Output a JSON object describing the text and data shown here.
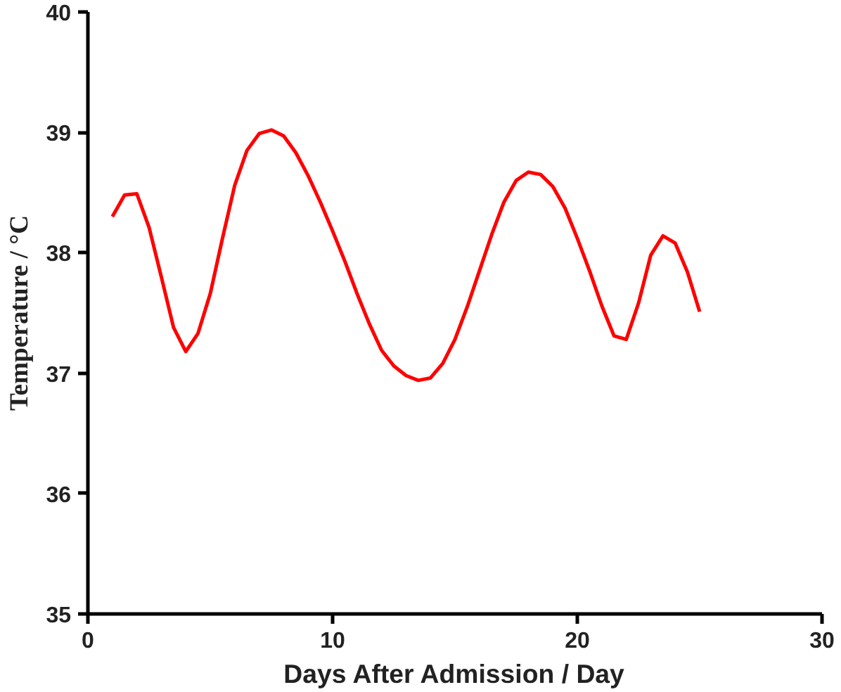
{
  "chart_data": {
    "type": "line",
    "xlabel": "Days After Admission / Day",
    "ylabel": "Temperature / °C",
    "x": [
      1,
      1.5,
      2,
      2.5,
      3,
      3.5,
      4,
      4.5,
      5,
      5.5,
      6,
      6.5,
      7,
      7.5,
      8,
      8.5,
      9,
      9.5,
      10,
      10.5,
      11,
      11.5,
      12,
      12.5,
      13,
      13.5,
      14,
      14.5,
      15,
      15.5,
      16,
      16.5,
      17,
      17.5,
      18,
      18.5,
      19,
      19.5,
      20,
      20.5,
      21,
      21.5,
      22,
      22.5,
      23,
      23.5,
      24,
      24.5,
      25
    ],
    "series": [
      {
        "color": "#ff0000",
        "values": [
          38.3,
          38.48,
          38.49,
          38.21,
          37.8,
          37.38,
          37.18,
          37.33,
          37.66,
          38.12,
          38.56,
          38.85,
          38.99,
          39.02,
          38.97,
          38.83,
          38.64,
          38.42,
          38.18,
          37.93,
          37.66,
          37.41,
          37.19,
          37.06,
          36.98,
          36.94,
          36.96,
          37.08,
          37.28,
          37.55,
          37.85,
          38.15,
          38.42,
          38.6,
          38.67,
          38.65,
          38.55,
          38.37,
          38.12,
          37.85,
          37.56,
          37.31,
          37.28,
          37.58,
          37.98,
          38.14,
          38.08,
          37.84,
          37.51
        ]
      }
    ],
    "xlim": [
      0,
      30
    ],
    "xticks": [
      0,
      10,
      20,
      30
    ],
    "ylim": [
      35,
      40
    ],
    "yticks": [
      35,
      36,
      37,
      38,
      39,
      40
    ],
    "grid": false,
    "marker": "none",
    "line_style": "solid"
  }
}
